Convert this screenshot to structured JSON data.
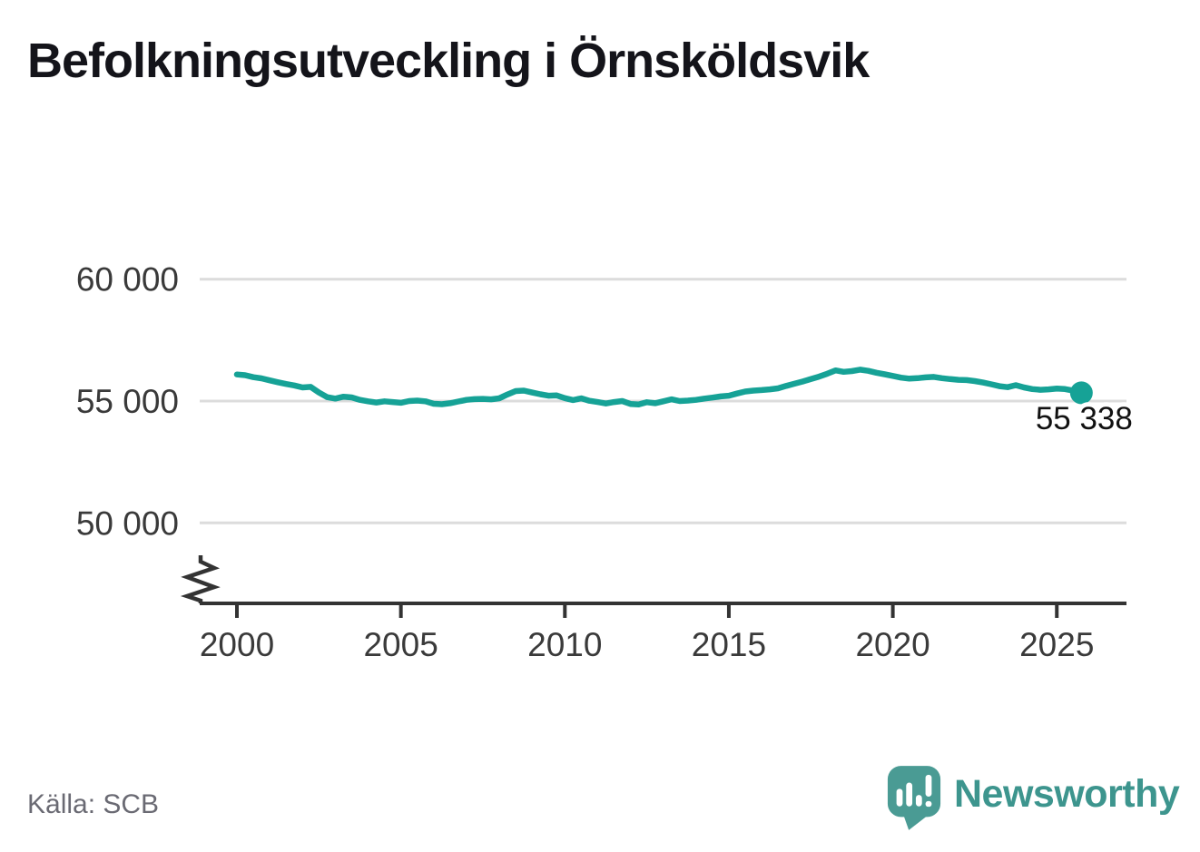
{
  "title": "Befolkningsutveckling i Örnsköldsvik",
  "source": "Källa: SCB",
  "brand": {
    "name": "Newsworthy",
    "icon": "speech-bubble-bar-chart-icon"
  },
  "colors": {
    "line": "#16a296",
    "grid": "#dcdcdc",
    "axis": "#333333",
    "tick_label": "#3a3a3a",
    "title": "#14141a",
    "end_label": "#111111",
    "source": "#6a6a73",
    "brand_text": "#3d958e",
    "brand_bubble": "#4a9b94"
  },
  "chart_data": {
    "type": "line",
    "title": "Befolkningsutveckling i Örnsköldsvik",
    "xlabel": "",
    "ylabel": "",
    "grid": true,
    "legend_position": "none",
    "x_range": [
      2000,
      2025.75
    ],
    "y_display_range": [
      48500,
      61000
    ],
    "y_axis_break": true,
    "x_ticks": [
      "2000",
      "2005",
      "2010",
      "2015",
      "2020",
      "2025"
    ],
    "y_ticks": [
      {
        "value": 50000,
        "label": "50 000"
      },
      {
        "value": 55000,
        "label": "55 000"
      },
      {
        "value": 60000,
        "label": "60 000"
      }
    ],
    "end_annotation": {
      "label": "55 338",
      "value": 55338,
      "year": 2025.75
    },
    "series": [
      {
        "name": "Befolkning",
        "color": "#16a296",
        "points": [
          [
            2000.0,
            56090
          ],
          [
            2000.25,
            56060
          ],
          [
            2000.5,
            55980
          ],
          [
            2000.75,
            55930
          ],
          [
            2001.0,
            55850
          ],
          [
            2001.25,
            55770
          ],
          [
            2001.5,
            55700
          ],
          [
            2001.75,
            55640
          ],
          [
            2002.0,
            55560
          ],
          [
            2002.25,
            55580
          ],
          [
            2002.5,
            55350
          ],
          [
            2002.75,
            55160
          ],
          [
            2003.0,
            55100
          ],
          [
            2003.25,
            55180
          ],
          [
            2003.5,
            55150
          ],
          [
            2003.75,
            55050
          ],
          [
            2004.0,
            54990
          ],
          [
            2004.25,
            54940
          ],
          [
            2004.5,
            54990
          ],
          [
            2004.75,
            54960
          ],
          [
            2005.0,
            54930
          ],
          [
            2005.25,
            55000
          ],
          [
            2005.5,
            55020
          ],
          [
            2005.75,
            54990
          ],
          [
            2006.0,
            54890
          ],
          [
            2006.25,
            54870
          ],
          [
            2006.5,
            54910
          ],
          [
            2006.75,
            54980
          ],
          [
            2007.0,
            55050
          ],
          [
            2007.25,
            55080
          ],
          [
            2007.5,
            55090
          ],
          [
            2007.75,
            55070
          ],
          [
            2008.0,
            55110
          ],
          [
            2008.25,
            55270
          ],
          [
            2008.5,
            55410
          ],
          [
            2008.75,
            55430
          ],
          [
            2009.0,
            55350
          ],
          [
            2009.25,
            55280
          ],
          [
            2009.5,
            55220
          ],
          [
            2009.75,
            55230
          ],
          [
            2010.0,
            55120
          ],
          [
            2010.25,
            55040
          ],
          [
            2010.5,
            55110
          ],
          [
            2010.75,
            55010
          ],
          [
            2011.0,
            54960
          ],
          [
            2011.25,
            54900
          ],
          [
            2011.5,
            54960
          ],
          [
            2011.75,
            55000
          ],
          [
            2012.0,
            54880
          ],
          [
            2012.25,
            54860
          ],
          [
            2012.5,
            54950
          ],
          [
            2012.75,
            54910
          ],
          [
            2013.0,
            54990
          ],
          [
            2013.25,
            55070
          ],
          [
            2013.5,
            55000
          ],
          [
            2013.75,
            55020
          ],
          [
            2014.0,
            55050
          ],
          [
            2014.25,
            55100
          ],
          [
            2014.5,
            55140
          ],
          [
            2014.75,
            55190
          ],
          [
            2015.0,
            55220
          ],
          [
            2015.25,
            55310
          ],
          [
            2015.5,
            55390
          ],
          [
            2015.75,
            55430
          ],
          [
            2016.0,
            55450
          ],
          [
            2016.25,
            55480
          ],
          [
            2016.5,
            55520
          ],
          [
            2016.75,
            55620
          ],
          [
            2017.0,
            55710
          ],
          [
            2017.25,
            55800
          ],
          [
            2017.5,
            55900
          ],
          [
            2017.75,
            56000
          ],
          [
            2018.0,
            56120
          ],
          [
            2018.25,
            56260
          ],
          [
            2018.5,
            56200
          ],
          [
            2018.75,
            56230
          ],
          [
            2019.0,
            56290
          ],
          [
            2019.25,
            56240
          ],
          [
            2019.5,
            56160
          ],
          [
            2019.75,
            56100
          ],
          [
            2020.0,
            56030
          ],
          [
            2020.25,
            55960
          ],
          [
            2020.5,
            55920
          ],
          [
            2020.75,
            55940
          ],
          [
            2021.0,
            55970
          ],
          [
            2021.25,
            55990
          ],
          [
            2021.5,
            55940
          ],
          [
            2021.75,
            55900
          ],
          [
            2022.0,
            55870
          ],
          [
            2022.25,
            55860
          ],
          [
            2022.5,
            55820
          ],
          [
            2022.75,
            55760
          ],
          [
            2023.0,
            55690
          ],
          [
            2023.25,
            55610
          ],
          [
            2023.5,
            55570
          ],
          [
            2023.75,
            55650
          ],
          [
            2024.0,
            55560
          ],
          [
            2024.25,
            55490
          ],
          [
            2024.5,
            55460
          ],
          [
            2024.75,
            55480
          ],
          [
            2025.0,
            55510
          ],
          [
            2025.25,
            55490
          ],
          [
            2025.5,
            55430
          ],
          [
            2025.75,
            55338
          ]
        ]
      }
    ]
  }
}
